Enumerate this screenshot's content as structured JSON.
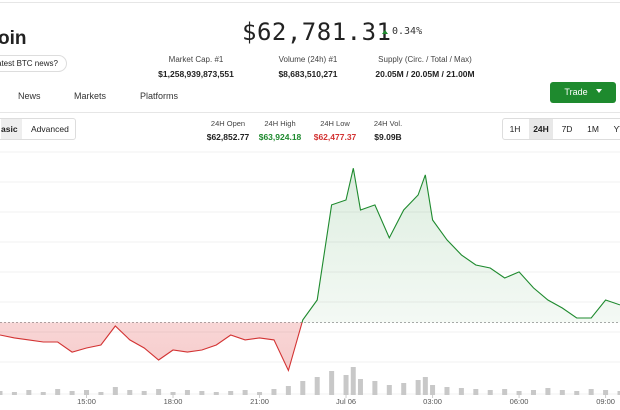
{
  "header": {
    "coin_name": "oin",
    "price": "$62,781.31",
    "change": "0.34%",
    "news_button": "atest BTC news?",
    "stats": [
      {
        "label": "Market Cap. #1",
        "value": "$1,258,939,873,551"
      },
      {
        "label": "Volume (24h) #1",
        "value": "$8,683,510,271"
      },
      {
        "label": "Supply (Circ. / Total / Max)",
        "value": "20.05M / 20.05M / 21.00M"
      }
    ]
  },
  "tabs": [
    "News",
    "Markets",
    "Platforms"
  ],
  "trade_button": "Trade",
  "view_toggle": [
    "asic",
    "Advanced"
  ],
  "day_stats": [
    {
      "label": "24H Open",
      "value": "$62,852.77",
      "color": "#222222"
    },
    {
      "label": "24H High",
      "value": "$63,924.18",
      "color": "#1e8a2e"
    },
    {
      "label": "24H Low",
      "value": "$62,477.37",
      "color": "#d33333"
    },
    {
      "label": "24H Vol.",
      "value": "$9.09B",
      "color": "#222222"
    }
  ],
  "ranges": [
    "1H",
    "24H",
    "7D",
    "1M",
    "YT"
  ],
  "chart_data": {
    "type": "line",
    "x": [
      12,
      12.5,
      13,
      13.5,
      14,
      14.5,
      15,
      15.5,
      16,
      16.5,
      17,
      17.5,
      18,
      18.5,
      19,
      19.5,
      20,
      20.5,
      21,
      21.5,
      22,
      22.5,
      23,
      23.5,
      24,
      24.25,
      24.5,
      25,
      25.5,
      26,
      26.5,
      26.75,
      27,
      27.5,
      28,
      28.5,
      29,
      29.5,
      30,
      30.5,
      31,
      31.5,
      32,
      32.5,
      33,
      33.5
    ],
    "series": [
      {
        "name": "Price",
        "values": [
          62766,
          62746,
          62732,
          62718,
          62718,
          62648,
          62676,
          62697,
          62829,
          62732,
          62676,
          62593,
          62662,
          62648,
          62662,
          62697,
          62766,
          62732,
          62746,
          62732,
          62520,
          62871,
          63009,
          63669,
          63703,
          63924,
          63634,
          63669,
          63440,
          63634,
          63738,
          63877,
          63564,
          63426,
          63322,
          63252,
          63231,
          63162,
          63204,
          63093,
          63009,
          62954,
          62884,
          62884,
          63009,
          62975
        ]
      }
    ],
    "volume": {
      "values": [
        4,
        3,
        5,
        3,
        6,
        4,
        5,
        3,
        8,
        5,
        4,
        6,
        3,
        5,
        4,
        3,
        4,
        5,
        3,
        6,
        9,
        14,
        18,
        24,
        20,
        28,
        16,
        14,
        10,
        12,
        15,
        18,
        10,
        8,
        7,
        6,
        5,
        6,
        4,
        5,
        7,
        5,
        4,
        6,
        5,
        4
      ],
      "ylim": [
        0,
        100
      ],
      "color": "#c8c8c8"
    },
    "reference": 62852.77,
    "up_color": "#1e8a2e",
    "down_color": "#d33333",
    "xlim": [
      12,
      33.5
    ],
    "ylim": [
      62350,
      64050
    ],
    "xticks": [
      {
        "value": 15,
        "label": "15:00"
      },
      {
        "value": 18,
        "label": "18:00"
      },
      {
        "value": 21,
        "label": "21:00"
      },
      {
        "value": 24,
        "label": "Jul 06"
      },
      {
        "value": 27,
        "label": "03:00"
      },
      {
        "value": 30,
        "label": "06:00"
      },
      {
        "value": 33,
        "label": "09:00"
      }
    ]
  }
}
